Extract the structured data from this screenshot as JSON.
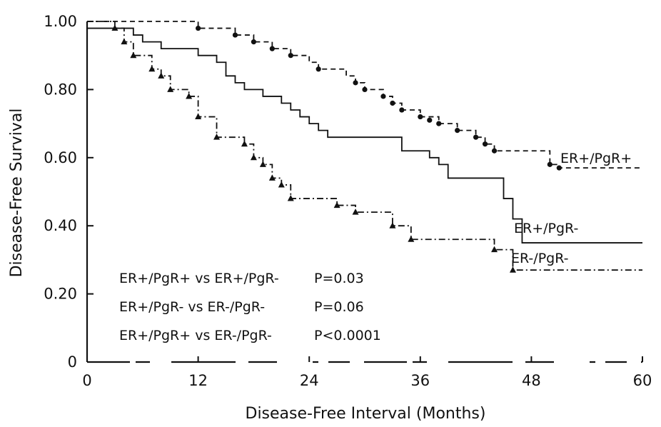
{
  "chart_data": {
    "type": "line",
    "style": "step",
    "title": "",
    "xlabel": "Disease-Free Interval (Months)",
    "ylabel": "Disease-Free Survival",
    "xlim": [
      0,
      60
    ],
    "ylim": [
      0,
      1.0
    ],
    "x_ticks": [
      0,
      12,
      24,
      36,
      48,
      60
    ],
    "x_tick_labels": [
      "0",
      "12",
      "24",
      "36",
      "48",
      "60"
    ],
    "y_ticks": [
      0,
      0.2,
      0.4,
      0.6,
      0.8,
      1.0
    ],
    "y_tick_labels": [
      "0",
      "0.20",
      "0.40",
      "0.60",
      "0.80",
      "1.00"
    ],
    "grid": false,
    "series": [
      {
        "name": "ER+/PgR+",
        "label": "ER+/PgR+",
        "line": "dashed",
        "marker": "circle",
        "color": "#111111",
        "points": [
          [
            0,
            1.0
          ],
          [
            12,
            0.98
          ],
          [
            16,
            0.96
          ],
          [
            18,
            0.94
          ],
          [
            20,
            0.92
          ],
          [
            22,
            0.9
          ],
          [
            24,
            0.88
          ],
          [
            25,
            0.86
          ],
          [
            28,
            0.84
          ],
          [
            29,
            0.82
          ],
          [
            30,
            0.8
          ],
          [
            32,
            0.78
          ],
          [
            33,
            0.76
          ],
          [
            34,
            0.74
          ],
          [
            36,
            0.72
          ],
          [
            38,
            0.7
          ],
          [
            40,
            0.68
          ],
          [
            42,
            0.66
          ],
          [
            43,
            0.64
          ],
          [
            44,
            0.62
          ],
          [
            50,
            0.58
          ],
          [
            51,
            0.57
          ],
          [
            60,
            0.57
          ]
        ],
        "markers": [
          [
            12,
            0.98
          ],
          [
            16,
            0.96
          ],
          [
            18,
            0.94
          ],
          [
            20,
            0.92
          ],
          [
            22,
            0.9
          ],
          [
            25,
            0.86
          ],
          [
            29,
            0.82
          ],
          [
            30,
            0.8
          ],
          [
            32,
            0.78
          ],
          [
            33,
            0.76
          ],
          [
            34,
            0.74
          ],
          [
            36,
            0.72
          ],
          [
            37,
            0.71
          ],
          [
            38,
            0.7
          ],
          [
            40,
            0.68
          ],
          [
            42,
            0.66
          ],
          [
            43,
            0.64
          ],
          [
            44,
            0.62
          ],
          [
            50,
            0.58
          ],
          [
            51,
            0.57
          ]
        ]
      },
      {
        "name": "ER+/PgR-",
        "label": "ER+/PgR-",
        "line": "solid",
        "marker": "none",
        "color": "#111111",
        "points": [
          [
            0,
            0.98
          ],
          [
            3,
            0.98
          ],
          [
            5,
            0.96
          ],
          [
            6,
            0.94
          ],
          [
            8,
            0.92
          ],
          [
            10,
            0.92
          ],
          [
            12,
            0.9
          ],
          [
            14,
            0.88
          ],
          [
            15,
            0.84
          ],
          [
            16,
            0.82
          ],
          [
            17,
            0.8
          ],
          [
            19,
            0.78
          ],
          [
            21,
            0.76
          ],
          [
            22,
            0.74
          ],
          [
            23,
            0.72
          ],
          [
            24,
            0.7
          ],
          [
            25,
            0.68
          ],
          [
            26,
            0.66
          ],
          [
            30,
            0.66
          ],
          [
            34,
            0.62
          ],
          [
            37,
            0.6
          ],
          [
            38,
            0.58
          ],
          [
            39,
            0.54
          ],
          [
            44,
            0.54
          ],
          [
            45,
            0.48
          ],
          [
            46,
            0.42
          ],
          [
            47,
            0.35
          ],
          [
            60,
            0.35
          ]
        ],
        "markers": []
      },
      {
        "name": "ER-/PgR-",
        "label": "ER-/PgR-",
        "line": "dashdot",
        "marker": "triangle",
        "color": "#111111",
        "points": [
          [
            0,
            1.0
          ],
          [
            3,
            0.98
          ],
          [
            4,
            0.94
          ],
          [
            5,
            0.9
          ],
          [
            7,
            0.86
          ],
          [
            8,
            0.84
          ],
          [
            9,
            0.8
          ],
          [
            11,
            0.78
          ],
          [
            12,
            0.72
          ],
          [
            14,
            0.66
          ],
          [
            17,
            0.64
          ],
          [
            18,
            0.6
          ],
          [
            19,
            0.58
          ],
          [
            20,
            0.54
          ],
          [
            21,
            0.52
          ],
          [
            22,
            0.48
          ],
          [
            27,
            0.46
          ],
          [
            29,
            0.44
          ],
          [
            33,
            0.4
          ],
          [
            35,
            0.36
          ],
          [
            42,
            0.36
          ],
          [
            44,
            0.33
          ],
          [
            46,
            0.27
          ],
          [
            60,
            0.27
          ]
        ],
        "markers": [
          [
            3,
            0.98
          ],
          [
            4,
            0.94
          ],
          [
            5,
            0.9
          ],
          [
            7,
            0.86
          ],
          [
            8,
            0.84
          ],
          [
            9,
            0.8
          ],
          [
            11,
            0.78
          ],
          [
            12,
            0.72
          ],
          [
            14,
            0.66
          ],
          [
            17,
            0.64
          ],
          [
            18,
            0.6
          ],
          [
            19,
            0.58
          ],
          [
            20,
            0.54
          ],
          [
            21,
            0.52
          ],
          [
            22,
            0.48
          ],
          [
            27,
            0.46
          ],
          [
            29,
            0.44
          ],
          [
            33,
            0.4
          ],
          [
            35,
            0.36
          ],
          [
            44,
            0.33
          ],
          [
            46,
            0.27
          ]
        ]
      }
    ],
    "annotations": [
      {
        "text": "ER+/PgR+ vs ER+/PgR-",
        "p": "P=0.03"
      },
      {
        "text": "ER+/PgR- vs ER-/PgR-",
        "p": "P=0.06"
      },
      {
        "text": "ER+/PgR+ vs ER-/PgR-",
        "p": "P<0.0001"
      }
    ]
  }
}
